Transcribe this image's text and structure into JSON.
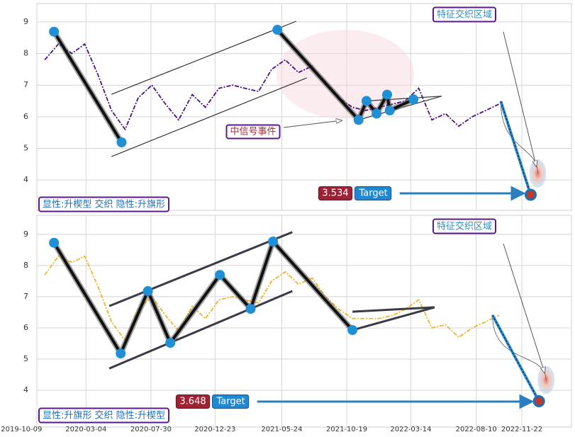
{
  "chart_data": [
    {
      "type": "line",
      "x": [
        "2019-12-01",
        "2020-01-01",
        "2020-02-01",
        "2020-03-01",
        "2020-04-01",
        "2020-05-01",
        "2020-06-01",
        "2020-07-01",
        "2020-08-01",
        "2020-09-01",
        "2020-10-01",
        "2020-11-01",
        "2020-12-01",
        "2021-01-01",
        "2021-02-01",
        "2021-03-01",
        "2021-04-01",
        "2021-05-01",
        "2021-06-01",
        "2021-07-01",
        "2021-08-01",
        "2021-09-01",
        "2021-10-01",
        "2021-11-01",
        "2021-12-01",
        "2022-01-01",
        "2022-02-01",
        "2022-03-01",
        "2022-04-01",
        "2022-05-01",
        "2022-06-01",
        "2022-07-01",
        "2022-08-01",
        "2022-09-01",
        "2022-10-01"
      ],
      "values": [
        7.8,
        8.3,
        8.0,
        8.3,
        7.3,
        6.2,
        5.6,
        6.6,
        7.0,
        6.4,
        5.9,
        6.7,
        6.3,
        6.9,
        7.0,
        6.9,
        6.8,
        7.5,
        7.8,
        7.4,
        7.6,
        7.0,
        6.6,
        6.3,
        6.2,
        6.3,
        6.4,
        6.5,
        6.9,
        5.9,
        6.1,
        5.7,
        6.0,
        6.2,
        6.4
      ],
      "color": "#4b0f8a",
      "xlim": [
        "2019-11-13",
        "2023-03-15"
      ],
      "ylim": [
        3.04,
        9.58
      ],
      "yticks": [
        4,
        5,
        6,
        7,
        8,
        9
      ],
      "grid": true,
      "pattern_lines": [
        {
          "x": [
            "2019-12-22",
            "2020-05-24"
          ],
          "values": [
            8.69,
            5.19
          ]
        },
        {
          "x": [
            "2021-05-14",
            "2021-11-15",
            "2021-12-03",
            "2021-12-26",
            "2022-01-19",
            "2022-01-25",
            "2022-03-20"
          ],
          "values": [
            8.75,
            5.9,
            6.5,
            6.1,
            6.7,
            6.2,
            6.55
          ]
        }
      ],
      "guide_lines": [
        {
          "x": [
            "2020-05-01",
            "2021-06-26"
          ],
          "values": [
            6.71,
            9.02
          ]
        },
        {
          "x": [
            "2020-05-01",
            "2021-07-20"
          ],
          "values": [
            4.74,
            7.23
          ]
        },
        {
          "x": [
            "2021-11-15",
            "2022-05-23"
          ],
          "values": [
            5.9,
            6.65
          ]
        },
        {
          "x": [
            "2021-12-03",
            "2022-05-23"
          ],
          "values": [
            6.5,
            6.65
          ]
        }
      ],
      "target": {
        "start_x": "2022-10-05",
        "start_value": 6.49,
        "x": "2022-12-12",
        "value": 3.534,
        "label": "Target"
      },
      "pattern_label": "显性:升楔型 交织 隐性:升旗形",
      "region_label": "特征交织区域",
      "signal_label": "中信号事件"
    },
    {
      "type": "line",
      "x": [
        "2019-12-01",
        "2020-01-01",
        "2020-02-01",
        "2020-03-01",
        "2020-04-01",
        "2020-05-01",
        "2020-06-01",
        "2020-07-01",
        "2020-08-01",
        "2020-09-01",
        "2020-10-01",
        "2020-11-01",
        "2020-12-01",
        "2021-01-01",
        "2021-02-01",
        "2021-03-01",
        "2021-04-01",
        "2021-05-01",
        "2021-06-01",
        "2021-07-01",
        "2021-08-01",
        "2021-09-01",
        "2021-10-01",
        "2021-11-01",
        "2021-12-01",
        "2022-01-01",
        "2022-02-01",
        "2022-03-01",
        "2022-04-01",
        "2022-05-01",
        "2022-06-01",
        "2022-07-01",
        "2022-08-01",
        "2022-09-01",
        "2022-10-01"
      ],
      "values": [
        7.7,
        8.3,
        8.1,
        8.3,
        7.3,
        6.2,
        5.6,
        6.6,
        7.0,
        6.4,
        5.9,
        6.7,
        6.3,
        6.9,
        7.0,
        6.9,
        6.8,
        7.5,
        7.8,
        7.4,
        7.6,
        7.0,
        6.6,
        6.3,
        6.3,
        6.3,
        6.4,
        6.6,
        6.9,
        6.0,
        6.1,
        5.7,
        6.0,
        6.2,
        6.4
      ],
      "color": "#f0b429",
      "xlim": [
        "2019-11-13",
        "2023-03-15"
      ],
      "ylim": [
        2.82,
        9.61
      ],
      "yticks": [
        4,
        5,
        6,
        7,
        8,
        9
      ],
      "grid": true,
      "xticks": [
        "2019-10-09",
        "2020-03-04",
        "2020-07-30",
        "2020-12-23",
        "2021-05-24",
        "2021-10-19",
        "2022-03-14",
        "2022-08-10",
        "2022-11-22"
      ],
      "pattern_lines": [
        {
          "x": [
            "2019-12-22",
            "2020-05-22",
            "2020-07-23",
            "2020-09-12",
            "2021-01-03",
            "2021-03-14",
            "2021-05-04",
            "2021-11-01"
          ],
          "values": [
            8.73,
            5.18,
            7.18,
            5.52,
            7.7,
            6.61,
            8.77,
            5.93
          ]
        }
      ],
      "guide_lines": [
        {
          "x": [
            "2020-04-26",
            "2021-06-17"
          ],
          "values": [
            6.7,
            9.07
          ]
        },
        {
          "x": [
            "2020-04-26",
            "2021-06-17"
          ],
          "values": [
            4.7,
            7.18
          ]
        },
        {
          "x": [
            "2021-11-01",
            "2022-05-07"
          ],
          "values": [
            6.52,
            6.66
          ]
        },
        {
          "x": [
            "2021-11-01",
            "2022-05-07"
          ],
          "values": [
            5.93,
            6.66
          ]
        }
      ],
      "target": {
        "start_x": "2022-09-16",
        "start_value": 6.41,
        "x": "2022-12-31",
        "value": 3.648,
        "label": "Target"
      },
      "pattern_label": "显性:升旗形 交织 隐性:升楔型",
      "region_label": "特征交织区域"
    }
  ]
}
